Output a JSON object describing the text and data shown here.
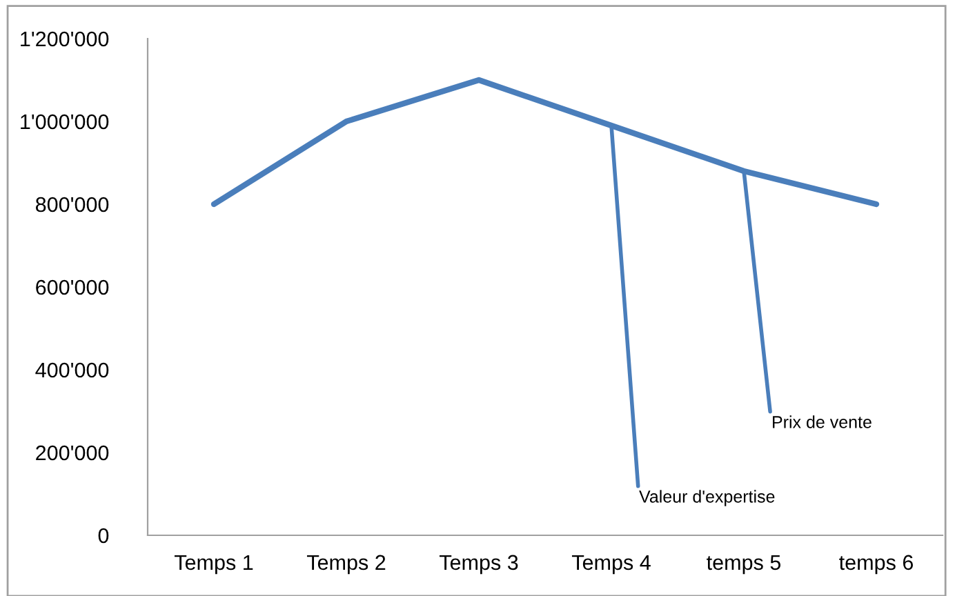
{
  "chart_data": {
    "type": "line",
    "categories": [
      "Temps 1",
      "Temps 2",
      "Temps 3",
      "Temps 4",
      "temps 5",
      "temps 6"
    ],
    "series": [
      {
        "color": "#4a7ebb",
        "values": [
          800000,
          1000000,
          1100000,
          990000,
          880000,
          800000
        ]
      }
    ],
    "ylim": [
      0,
      1200000
    ],
    "yticks": [
      {
        "value": 0,
        "label": "0"
      },
      {
        "value": 200000,
        "label": "200'000"
      },
      {
        "value": 400000,
        "label": "400'000"
      },
      {
        "value": 600000,
        "label": "600'000"
      },
      {
        "value": 800000,
        "label": "800'000"
      },
      {
        "value": 1000000,
        "label": "1'000'000"
      },
      {
        "value": 1200000,
        "label": "1'200'000"
      }
    ],
    "annotations": [
      {
        "text": "Valeur d'expertise",
        "x": "Temps 4",
        "y": 990000
      },
      {
        "text": "Prix de vente",
        "x": "temps 5",
        "y": 880000
      }
    ],
    "grid": false,
    "legend": false,
    "marker": "none",
    "line_style": "solid"
  }
}
